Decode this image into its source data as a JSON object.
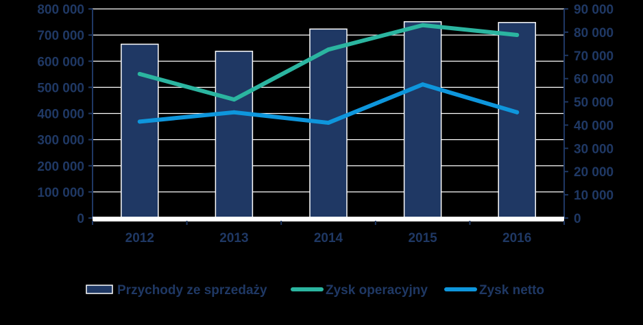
{
  "chart_data": {
    "type": "bar",
    "categories": [
      "2012",
      "2013",
      "2014",
      "2015",
      "2016"
    ],
    "series": [
      {
        "name": "Przychody ze sprzedaży",
        "type": "bar",
        "axis": "left",
        "values": [
          665000,
          638000,
          723000,
          751000,
          748000
        ]
      },
      {
        "name": "Zysk operacyjny",
        "type": "line",
        "axis": "right",
        "values": [
          62000,
          51000,
          72500,
          83000,
          78800
        ]
      },
      {
        "name": "Zysk netto",
        "type": "line",
        "axis": "right",
        "values": [
          41500,
          45500,
          41000,
          57500,
          45500
        ]
      }
    ],
    "y_left": {
      "ylim": [
        0,
        800000
      ],
      "ticks": [
        0,
        100000,
        200000,
        300000,
        400000,
        500000,
        600000,
        700000,
        800000
      ],
      "tick_labels": [
        "0",
        "100 000",
        "200 000",
        "300 000",
        "400 000",
        "500 000",
        "600 000",
        "700 000",
        "800 000"
      ]
    },
    "y_right": {
      "ylim": [
        0,
        90000
      ],
      "ticks": [
        0,
        10000,
        20000,
        30000,
        40000,
        50000,
        60000,
        70000,
        80000,
        90000
      ],
      "tick_labels": [
        "0",
        "10 000",
        "20 000",
        "30 000",
        "40 000",
        "50 000",
        "60 000",
        "70 000",
        "80 000",
        "90 000"
      ]
    },
    "grid": true,
    "legend": "bottom",
    "colors": {
      "background": "#000000",
      "bar_fill": "#1F3864",
      "bar_stroke": "#FFFFFF",
      "zysk_operacyjny": "#2BB5A0",
      "zysk_netto": "#0E96DC",
      "text": "#1F3864",
      "grid": "#FFFFFF"
    }
  }
}
